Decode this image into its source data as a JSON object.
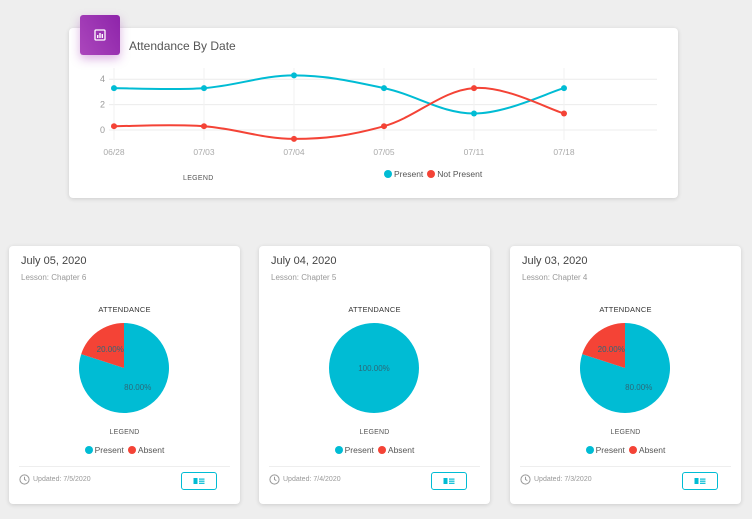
{
  "attendance_chart": {
    "title": "Attendance By Date",
    "legend_title": "LEGEND",
    "chart_data": {
      "type": "line",
      "title": "Attendance By Date",
      "categories": [
        "06/28",
        "07/03",
        "07/04",
        "07/05",
        "07/11",
        "07/18"
      ],
      "ylim": [
        0,
        4
      ],
      "yticks": [
        0,
        2,
        4
      ],
      "grid": true,
      "legend_position": "bottom",
      "series": [
        {
          "name": "Present",
          "color": "#00bcd4",
          "values": [
            3.3,
            3.3,
            4.3,
            3.3,
            1.3,
            3.3
          ]
        },
        {
          "name": "Not Present",
          "color": "#f44336",
          "values": [
            0.3,
            0.3,
            -0.7,
            0.3,
            3.3,
            1.3
          ]
        }
      ]
    }
  },
  "lessons": [
    {
      "date": "July 05, 2020",
      "lesson": "Lesson: Chapter 6",
      "attendance_title": "ATTENDANCE",
      "legend_title": "LEGEND",
      "legend": [
        "Present",
        "Absent"
      ],
      "updated": "Updated: 7/5/2020",
      "chart_data": {
        "type": "pie",
        "labels": [
          "Present",
          "Absent"
        ],
        "values": [
          80,
          20
        ],
        "value_labels": [
          "80.00%",
          "20.00%"
        ],
        "colors": [
          "#00bcd4",
          "#f44336"
        ]
      }
    },
    {
      "date": "July 04, 2020",
      "lesson": "Lesson: Chapter 5",
      "attendance_title": "ATTENDANCE",
      "legend_title": "LEGEND",
      "legend": [
        "Present",
        "Absent"
      ],
      "updated": "Updated: 7/4/2020",
      "chart_data": {
        "type": "pie",
        "labels": [
          "Present",
          "Absent"
        ],
        "values": [
          100,
          0
        ],
        "value_labels": [
          "100.00%",
          ""
        ],
        "colors": [
          "#00bcd4",
          "#f44336"
        ]
      }
    },
    {
      "date": "July 03, 2020",
      "lesson": "Lesson: Chapter 4",
      "attendance_title": "ATTENDANCE",
      "legend_title": "LEGEND",
      "legend": [
        "Present",
        "Absent"
      ],
      "updated": "Updated: 7/3/2020",
      "chart_data": {
        "type": "pie",
        "labels": [
          "Present",
          "Absent"
        ],
        "values": [
          80,
          20
        ],
        "value_labels": [
          "80.00%",
          "20.00%"
        ],
        "colors": [
          "#00bcd4",
          "#f44336"
        ]
      }
    }
  ],
  "icons": {
    "chart_header": "bar-chart-icon",
    "clock": "clock-icon",
    "button": "id-card-icon"
  }
}
